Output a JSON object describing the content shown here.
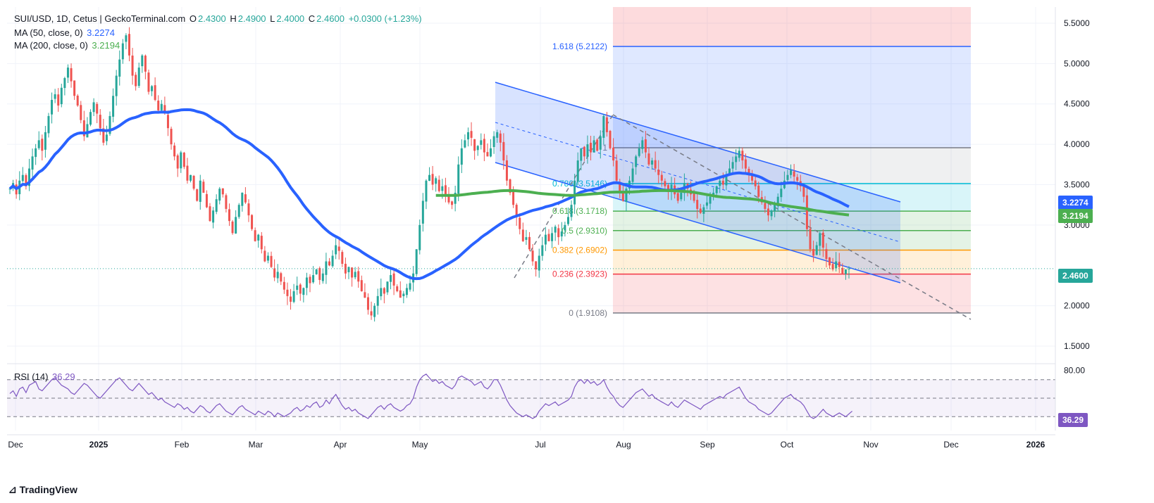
{
  "header": {
    "symbol": "SUI/USD, 1D, Cetus | GeckoTerminal.com",
    "open_label": "O",
    "open": "2.4300",
    "high_label": "H",
    "high": "2.4900",
    "low_label": "L",
    "low": "2.4000",
    "close_label": "C",
    "close": "2.4600",
    "change": "+0.0300 (+1.23%)",
    "ma50_label": "MA (50, close, 0)",
    "ma50_value": "3.2274",
    "ma200_label": "MA (200, close, 0)",
    "ma200_value": "3.2194",
    "rsi_label": "RSI (14)",
    "rsi_value": "36.29"
  },
  "colors": {
    "up": "#26a69a",
    "down": "#ef5350",
    "ma50": "#2962ff",
    "ma200": "#4caf50",
    "rsi": "#7e57c2",
    "channel": "#2962ff",
    "fib_1618": "#2962ff",
    "fib_1": "#787b86",
    "fib_0786": "#00bcd4",
    "fib_0618": "#4caf50",
    "fib_05": "#4caf50",
    "fib_0382": "#ff9800",
    "fib_0236": "#f23645",
    "fib_0": "#787b86"
  },
  "branding": {
    "logo_text": "TradingView"
  },
  "chart_data": {
    "type": "candlestick",
    "price_axis": {
      "ticks": [
        "5.5000",
        "5.0000",
        "4.5000",
        "4.0000",
        "3.5000",
        "3.0000",
        "2.0000",
        "1.5000"
      ],
      "ylim": [
        1.3,
        5.7
      ]
    },
    "time_axis": {
      "ticks": [
        "Dec",
        "2025",
        "Feb",
        "Mar",
        "Apr",
        "May",
        "Jul",
        "Aug",
        "Sep",
        "Oct",
        "Nov",
        "Dec",
        "2026"
      ]
    },
    "last_price": "2.4600",
    "ma50_last": "3.2274",
    "ma200_last": "3.2194",
    "rsi_last": "36.29",
    "rsi_axis": {
      "ticks": [
        "80.00"
      ],
      "bands": [
        70,
        50,
        30
      ]
    },
    "fibonacci": [
      {
        "level": "1.618",
        "price": "5.2122",
        "label": "1.618 (5.2122)"
      },
      {
        "level": "1",
        "price": "3.9572",
        "label": "1"
      },
      {
        "level": "0.786",
        "price": "3.5146",
        "label": "0.786 (3.5146)"
      },
      {
        "level": "0.618",
        "price": "3.1718",
        "label": "0.618 (3.1718)"
      },
      {
        "level": "0.5",
        "price": "2.9310",
        "label": "0.5 (2.9310)"
      },
      {
        "level": "0.382",
        "price": "2.6902",
        "label": "0.382 (2.6902)"
      },
      {
        "level": "0.236",
        "price": "2.3923",
        "label": "0.236 (2.3923)"
      },
      {
        "level": "0",
        "price": "1.9108",
        "label": "0 (1.9108)"
      }
    ],
    "close_series": [
      3.45,
      3.52,
      3.38,
      3.55,
      3.62,
      3.48,
      3.7,
      3.85,
      3.95,
      4.05,
      3.92,
      4.15,
      4.35,
      4.55,
      4.62,
      4.48,
      4.7,
      4.82,
      4.95,
      4.78,
      4.6,
      4.48,
      4.3,
      4.1,
      4.25,
      4.4,
      4.52,
      4.38,
      4.2,
      4.02,
      4.12,
      4.35,
      4.6,
      4.85,
      5.05,
      5.25,
      5.35,
      5.1,
      4.85,
      4.72,
      4.95,
      5.1,
      4.9,
      4.65,
      4.72,
      4.55,
      4.42,
      4.5,
      4.38,
      4.2,
      4.0,
      3.85,
      3.7,
      3.9,
      3.72,
      3.55,
      3.62,
      3.45,
      3.3,
      3.55,
      3.4,
      3.22,
      3.05,
      3.18,
      3.32,
      3.45,
      3.38,
      3.2,
      3.05,
      2.9,
      3.1,
      3.25,
      3.4,
      3.28,
      3.12,
      2.95,
      2.8,
      2.88,
      2.7,
      2.55,
      2.62,
      2.48,
      2.35,
      2.42,
      2.3,
      2.2,
      2.12,
      2.05,
      2.18,
      2.25,
      2.15,
      2.22,
      2.35,
      2.28,
      2.38,
      2.45,
      2.32,
      2.4,
      2.55,
      2.5,
      2.62,
      2.75,
      2.68,
      2.52,
      2.4,
      2.48,
      2.35,
      2.42,
      2.3,
      2.18,
      2.1,
      1.95,
      1.88,
      2.0,
      2.12,
      2.22,
      2.15,
      2.3,
      2.38,
      2.25,
      2.18,
      2.1,
      2.15,
      2.22,
      2.28,
      2.4,
      2.7,
      3.0,
      3.3,
      3.55,
      3.62,
      3.5,
      3.58,
      3.42,
      3.48,
      3.38,
      3.28,
      3.25,
      3.4,
      3.75,
      3.95,
      4.05,
      4.15,
      4.08,
      3.92,
      3.98,
      4.05,
      3.9,
      3.85,
      3.95,
      4.1,
      4.15,
      4.02,
      3.8,
      3.55,
      3.4,
      3.25,
      3.1,
      2.95,
      2.8,
      2.85,
      2.7,
      2.55,
      2.45,
      2.62,
      2.75,
      2.88,
      2.8,
      2.9,
      2.98,
      2.85,
      2.92,
      3.0,
      3.1,
      3.25,
      3.55,
      3.8,
      3.95,
      3.85,
      4.0,
      3.9,
      4.05,
      3.92,
      4.1,
      4.35,
      4.15,
      3.95,
      3.8,
      3.55,
      3.4,
      3.3,
      3.45,
      3.55,
      3.7,
      3.85,
      3.95,
      4.05,
      3.9,
      3.75,
      3.8,
      3.7,
      3.62,
      3.55,
      3.48,
      3.42,
      3.5,
      3.38,
      3.3,
      3.4,
      3.52,
      3.45,
      3.38,
      3.3,
      3.2,
      3.15,
      3.22,
      3.28,
      3.35,
      3.4,
      3.48,
      3.55,
      3.5,
      3.62,
      3.7,
      3.78,
      3.85,
      3.92,
      3.8,
      3.7,
      3.62,
      3.55,
      3.48,
      3.35,
      3.28,
      3.2,
      3.12,
      3.18,
      3.25,
      3.35,
      3.45,
      3.55,
      3.62,
      3.68,
      3.6,
      3.55,
      3.48,
      3.35,
      2.95,
      2.7,
      2.62,
      2.75,
      2.9,
      2.72,
      2.58,
      2.5,
      2.45,
      2.55,
      2.48,
      2.4,
      2.45,
      2.46
    ],
    "rsi_series": [
      55,
      58,
      52,
      60,
      62,
      56,
      64,
      66,
      68,
      60,
      58,
      62,
      66,
      70,
      72,
      68,
      64,
      62,
      60,
      56,
      54,
      58,
      62,
      66,
      64,
      60,
      56,
      52,
      50,
      54,
      58,
      62,
      66,
      70,
      72,
      68,
      64,
      60,
      58,
      62,
      66,
      62,
      58,
      54,
      56,
      52,
      48,
      50,
      46,
      44,
      42,
      40,
      44,
      42,
      38,
      40,
      36,
      34,
      38,
      42,
      40,
      36,
      34,
      38,
      42,
      44,
      40,
      36,
      34,
      32,
      36,
      40,
      42,
      38,
      36,
      34,
      32,
      36,
      34,
      32,
      36,
      34,
      30,
      34,
      32,
      30,
      32,
      34,
      38,
      40,
      36,
      38,
      42,
      40,
      44,
      46,
      40,
      42,
      48,
      44,
      50,
      54,
      48,
      42,
      38,
      40,
      36,
      38,
      34,
      32,
      30,
      28,
      32,
      36,
      40,
      42,
      38,
      42,
      44,
      40,
      38,
      36,
      38,
      42,
      44,
      50,
      62,
      70,
      74,
      76,
      72,
      68,
      70,
      66,
      68,
      64,
      62,
      60,
      64,
      72,
      74,
      72,
      70,
      68,
      64,
      66,
      68,
      62,
      60,
      64,
      70,
      70,
      64,
      56,
      48,
      42,
      38,
      34,
      32,
      30,
      32,
      30,
      28,
      30,
      36,
      40,
      44,
      42,
      44,
      46,
      42,
      44,
      46,
      48,
      52,
      62,
      68,
      70,
      66,
      70,
      66,
      68,
      64,
      66,
      70,
      62,
      56,
      52,
      46,
      42,
      40,
      44,
      48,
      52,
      56,
      58,
      60,
      56,
      52,
      54,
      50,
      48,
      46,
      44,
      42,
      46,
      42,
      40,
      44,
      48,
      46,
      44,
      42,
      40,
      38,
      42,
      44,
      46,
      48,
      50,
      52,
      50,
      54,
      56,
      58,
      60,
      62,
      56,
      50,
      46,
      44,
      42,
      38,
      36,
      34,
      32,
      34,
      38,
      42,
      46,
      50,
      52,
      54,
      50,
      48,
      46,
      42,
      36,
      30,
      28,
      30,
      34,
      38,
      34,
      32,
      30,
      32,
      34,
      32,
      30,
      33,
      36
    ]
  }
}
